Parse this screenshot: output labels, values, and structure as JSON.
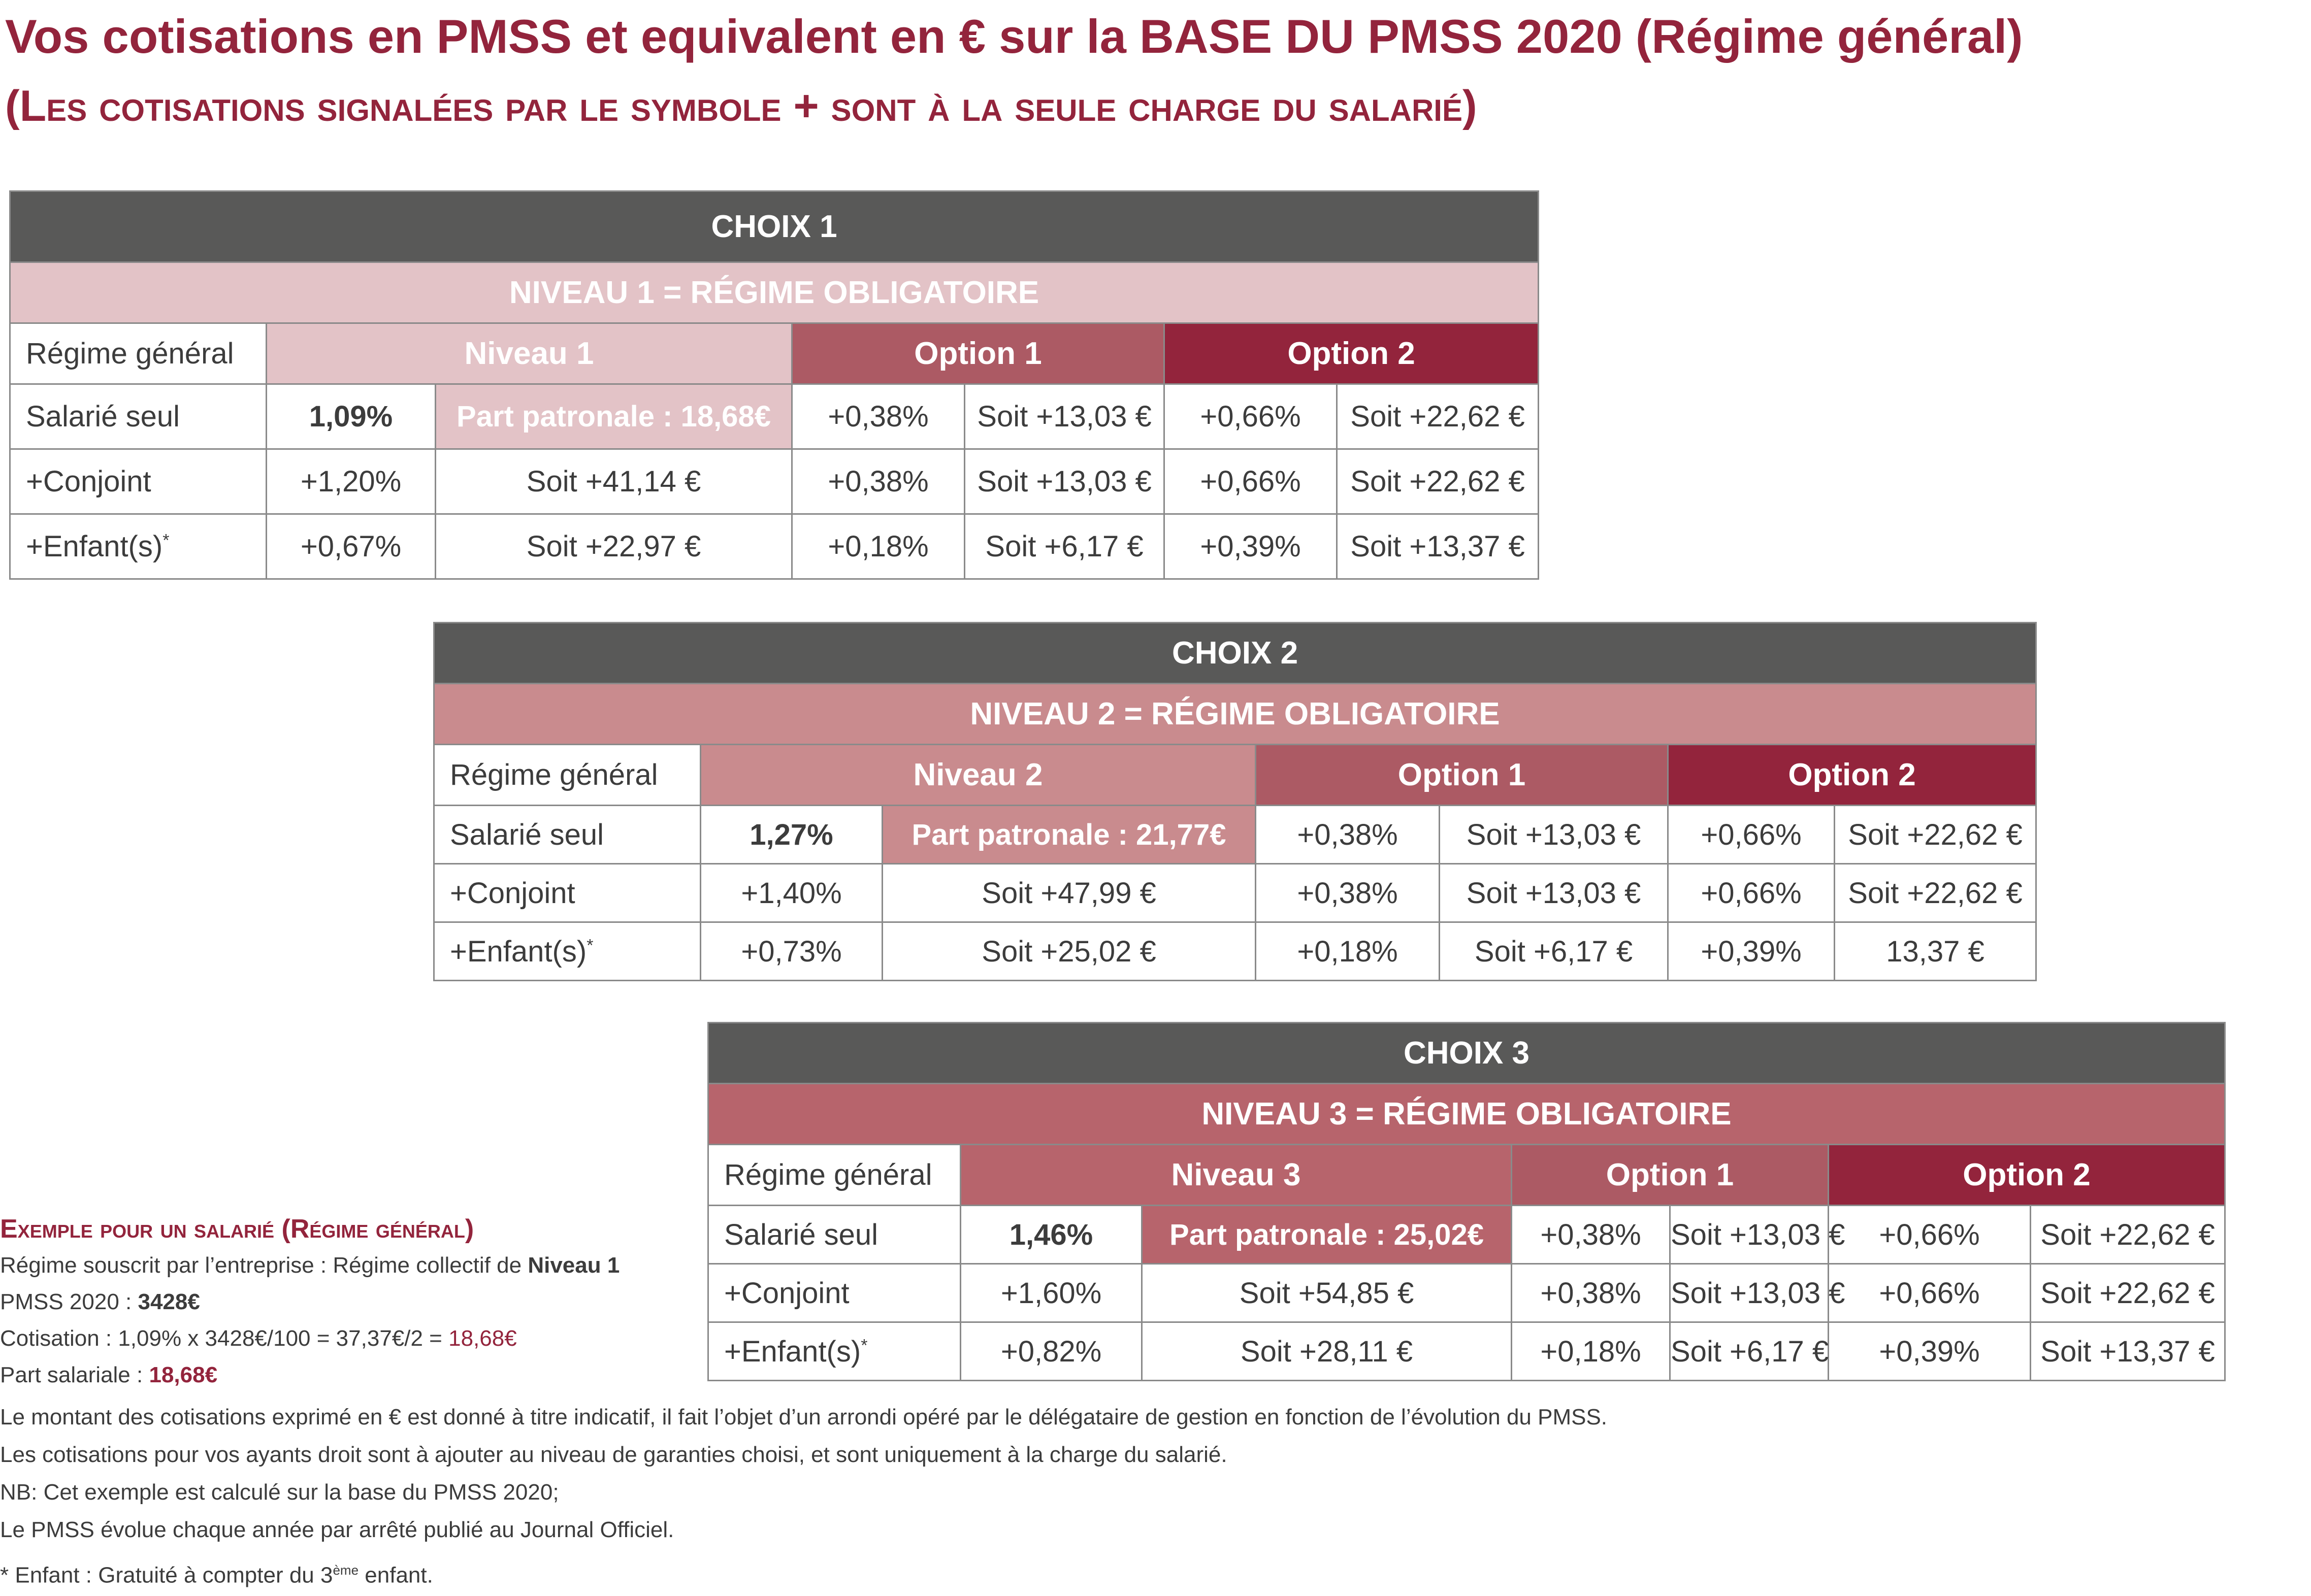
{
  "title_line1": "Vos cotisations en PMSS et equivalent en € sur la BASE DU PMSS 2020 (Régime général)",
  "title_line2": "(Les cotisations signalées par le symbole + sont à la seule charge du salarié)",
  "colors": {
    "dark_header": "#595958",
    "choix1_light": "#e3c3c7",
    "choix2_mid": "#c98b8e",
    "choix3_mid": "#b7646c",
    "option1": "#ac5a64",
    "option2": "#93243c",
    "title": "#93243c"
  },
  "tables": [
    {
      "choix": "CHOIX 1",
      "niveau_title": "NIVEAU 1 = RÉGIME OBLIGATOIRE",
      "regime_label": "Régime général",
      "niveau_label": "Niveau 1",
      "option1_label": "Option 1",
      "option2_label": "Option 2",
      "rows": [
        {
          "label": "Salarié seul",
          "pct": "1,09%",
          "niveau": "Part patronale : 18,68€",
          "o1_pct": "+0,38%",
          "o1_eur": "Soit +13,03 €",
          "o2_pct": "+0,66%",
          "o2_eur": "Soit +22,62 €"
        },
        {
          "label": "+Conjoint",
          "pct": "+1,20%",
          "niveau": "Soit +41,14 €",
          "o1_pct": "+0,38%",
          "o1_eur": "Soit +13,03 €",
          "o2_pct": "+0,66%",
          "o2_eur": "Soit +22,62 €"
        },
        {
          "label": "+Enfant(s)",
          "label_sup": "*",
          "pct": "+0,67%",
          "niveau": "Soit +22,97 €",
          "o1_pct": "+0,18%",
          "o1_eur": "Soit +6,17 €",
          "o2_pct": "+0,39%",
          "o2_eur": "Soit +13,37 €"
        }
      ]
    },
    {
      "choix": "CHOIX 2",
      "niveau_title": "NIVEAU 2 = RÉGIME OBLIGATOIRE",
      "regime_label": "Régime général",
      "niveau_label": "Niveau 2",
      "option1_label": "Option 1",
      "option2_label": "Option 2",
      "rows": [
        {
          "label": "Salarié seul",
          "pct": "1,27%",
          "niveau": "Part patronale : 21,77€",
          "o1_pct": "+0,38%",
          "o1_eur": "Soit +13,03 €",
          "o2_pct": "+0,66%",
          "o2_eur": "Soit +22,62 €"
        },
        {
          "label": "+Conjoint",
          "pct": "+1,40%",
          "niveau": "Soit +47,99 €",
          "o1_pct": "+0,38%",
          "o1_eur": "Soit +13,03 €",
          "o2_pct": "+0,66%",
          "o2_eur": "Soit +22,62 €"
        },
        {
          "label": "+Enfant(s)",
          "label_sup": "*",
          "pct": "+0,73%",
          "niveau": "Soit +25,02 €",
          "o1_pct": "+0,18%",
          "o1_eur": "Soit +6,17 €",
          "o2_pct": "+0,39%",
          "o2_eur": "13,37 €"
        }
      ]
    },
    {
      "choix": "CHOIX 3",
      "niveau_title": "NIVEAU 3 = RÉGIME OBLIGATOIRE",
      "regime_label": "Régime général",
      "niveau_label": "Niveau 3",
      "option1_label": "Option 1",
      "option2_label": "Option 2",
      "rows": [
        {
          "label": "Salarié seul",
          "pct": "1,46%",
          "niveau": "Part patronale : 25,02€",
          "o1_pct": "+0,38%",
          "o1_eur": "Soit +13,03 €",
          "o2_pct": "+0,66%",
          "o2_eur": "Soit +22,62 €"
        },
        {
          "label": "+Conjoint",
          "pct": "+1,60%",
          "niveau": "Soit +54,85 €",
          "o1_pct": "+0,38%",
          "o1_eur": "Soit +13,03 €",
          "o2_pct": "+0,66%",
          "o2_eur": "Soit +22,62 €"
        },
        {
          "label": "+Enfant(s)",
          "label_sup": "*",
          "pct": "+0,82%",
          "niveau": "Soit +28,11 €",
          "o1_pct": "+0,18%",
          "o1_eur": "Soit +6,17 €",
          "o2_pct": "+0,39%",
          "o2_eur": "Soit +13,37 €"
        }
      ]
    }
  ],
  "example": {
    "title": "Exemple pour un salarié (Régime général)",
    "line1_prefix": "Régime souscrit par l’entreprise : Régime collectif de ",
    "line1_bold": "Niveau 1",
    "line2_prefix": "PMSS 2020 : ",
    "line2_bold": "3428€",
    "line3_prefix": "Cotisation : 1,09% x 3428€/100 = 37,37€/2 = ",
    "line3_value": "18,68€",
    "line4_prefix": "Part salariale : ",
    "line4_value": "18,68€"
  },
  "notes": [
    "Le montant des cotisations exprimé en € est donné à titre indicatif, il fait l’objet d’un arrondi opéré par le délégataire de gestion en fonction de l’évolution du PMSS.",
    "Les cotisations pour vos ayants droit sont à ajouter au niveau de garanties choisi, et sont uniquement à la charge du salarié.",
    "NB: Cet exemple est calculé sur la base du PMSS 2020;",
    "Le PMSS évolue chaque année par arrêté publié au Journal Officiel."
  ],
  "footnote": {
    "prefix": "* Enfant : Gratuité à compter du 3",
    "sup": "ème",
    "suffix": " enfant."
  }
}
